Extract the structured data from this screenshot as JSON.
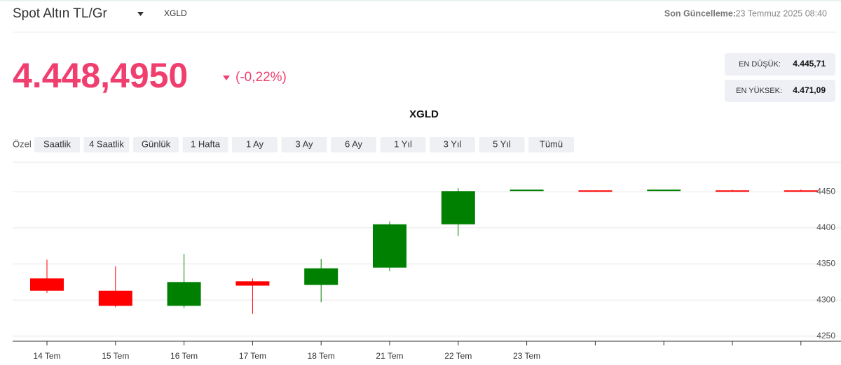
{
  "header": {
    "title": "Spot Altın TL/Gr",
    "symbol": "XGLD",
    "updated_label": "Son Güncelleme:",
    "updated_value": "23 Temmuz 2025 08:40"
  },
  "price": {
    "value": "4.448,4950",
    "change": "(-0,22%)"
  },
  "range": {
    "low_label": "EN DÜŞÜK:",
    "low": "4.445,71",
    "high_label": "EN YÜKSEK:",
    "high": "4.471,09"
  },
  "periods": {
    "label": "Özel",
    "options": [
      "Saatlik",
      "4 Saatlik",
      "Günlük",
      "1 Hafta",
      "1 Ay",
      "3 Ay",
      "6 Ay",
      "1 Yıl",
      "3 Yıl",
      "5 Yıl",
      "Tümü"
    ]
  },
  "chart_data": {
    "type": "candlestick",
    "title": "XGLD",
    "categories": [
      "14 Tem",
      "15 Tem",
      "16 Tem",
      "17 Tem",
      "18 Tem",
      "21 Tem",
      "22 Tem",
      "23 Tem",
      null,
      null,
      null,
      null
    ],
    "open": [
      4330,
      4313,
      4292,
      4326,
      4321,
      4345,
      4405,
      4452,
      4452,
      4452,
      4452,
      4452
    ],
    "high": [
      4356,
      4347,
      4364,
      4330,
      4357,
      4409,
      4455,
      4453,
      4452,
      4453,
      4453,
      4453
    ],
    "low": [
      4310,
      4290,
      4289,
      4281,
      4297,
      4340,
      4389,
      4452,
      4451,
      4452,
      4451,
      4451
    ],
    "close": [
      4313,
      4292,
      4325,
      4320,
      4344,
      4405,
      4451,
      4453,
      4451,
      4453,
      4451,
      4451
    ],
    "up_color": "#008000",
    "down_color": "#ff0000",
    "ylim": [
      4243,
      4491
    ],
    "yticks": [
      4250,
      4300,
      4350,
      4400,
      4450
    ],
    "grid": true
  }
}
